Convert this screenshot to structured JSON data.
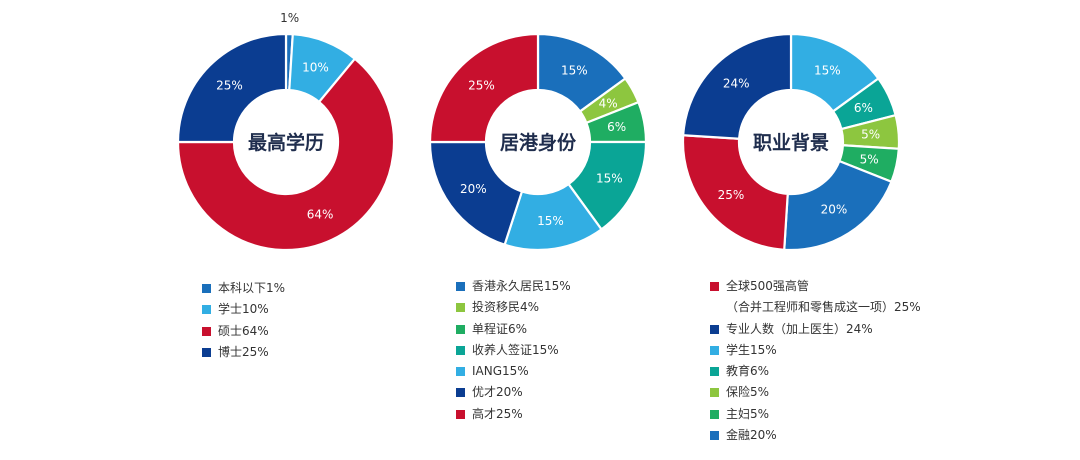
{
  "colors": {
    "navy": "#0b3d91",
    "blue": "#1a6fbb",
    "sky": "#32aee3",
    "red": "#c8102e",
    "lime": "#8dc63f",
    "green": "#1fad62",
    "teal": "#0aa596",
    "center_text": "#1f2d4d"
  },
  "chart_data": [
    {
      "type": "pie",
      "title": "最高学历",
      "slices": [
        {
          "label": "本科以下",
          "value": 1,
          "color": "#1a6fbb",
          "data_label": "1%",
          "legend": "本科以下1%"
        },
        {
          "label": "学士",
          "value": 10,
          "color": "#32aee3",
          "data_label": "10%",
          "legend": "学士10%"
        },
        {
          "label": "硕士",
          "value": 64,
          "color": "#c8102e",
          "data_label": "64%",
          "legend": "硕士64%"
        },
        {
          "label": "博士",
          "value": 25,
          "color": "#0b3d91",
          "data_label": "25%",
          "legend": "博士25%"
        }
      ]
    },
    {
      "type": "pie",
      "title": "居港身份",
      "slices": [
        {
          "label": "香港永久居民",
          "value": 15,
          "color": "#1a6fbb",
          "data_label": "15%",
          "legend": "香港永久居民15%"
        },
        {
          "label": "投资移民",
          "value": 4,
          "color": "#8dc63f",
          "data_label": "4%",
          "legend": "投资移民4%"
        },
        {
          "label": "单程证",
          "value": 6,
          "color": "#1fad62",
          "data_label": "6%",
          "legend": "单程证6%"
        },
        {
          "label": "收养人签证",
          "value": 15,
          "color": "#0aa596",
          "data_label": "15%",
          "legend": "收养人签证15%"
        },
        {
          "label": "IANG",
          "value": 15,
          "color": "#32aee3",
          "data_label": "15%",
          "legend": "IANG15%"
        },
        {
          "label": "优才",
          "value": 20,
          "color": "#0b3d91",
          "data_label": "20%",
          "legend": "优才20%"
        },
        {
          "label": "高才",
          "value": 25,
          "color": "#c8102e",
          "data_label": "25%",
          "legend": "高才25%"
        }
      ]
    },
    {
      "type": "pie",
      "title": "职业背景",
      "slices": [
        {
          "label": "学生",
          "value": 15,
          "color": "#32aee3",
          "data_label": "15%",
          "legend": "学生15%"
        },
        {
          "label": "教育",
          "value": 6,
          "color": "#0aa596",
          "data_label": "6%",
          "legend": "教育6%"
        },
        {
          "label": "保险",
          "value": 5,
          "color": "#8dc63f",
          "data_label": "5%",
          "legend": "保险5%"
        },
        {
          "label": "主妇",
          "value": 5,
          "color": "#1fad62",
          "data_label": "5%",
          "legend": "主妇5%"
        },
        {
          "label": "金融",
          "value": 20,
          "color": "#1a6fbb",
          "data_label": "20%",
          "legend": "金融20%"
        },
        {
          "label": "全球500强高管",
          "value": 25,
          "color": "#c8102e",
          "data_label": "25%",
          "legend": "全球500强高管\n（合并工程师和零售成这一项）25%"
        },
        {
          "label": "专业人数（加上医生）",
          "value": 24,
          "color": "#0b3d91",
          "data_label": "24%",
          "legend": "专业人数（加上医生）24%"
        }
      ],
      "legend_order": [
        5,
        6,
        0,
        1,
        2,
        3,
        4
      ]
    }
  ]
}
